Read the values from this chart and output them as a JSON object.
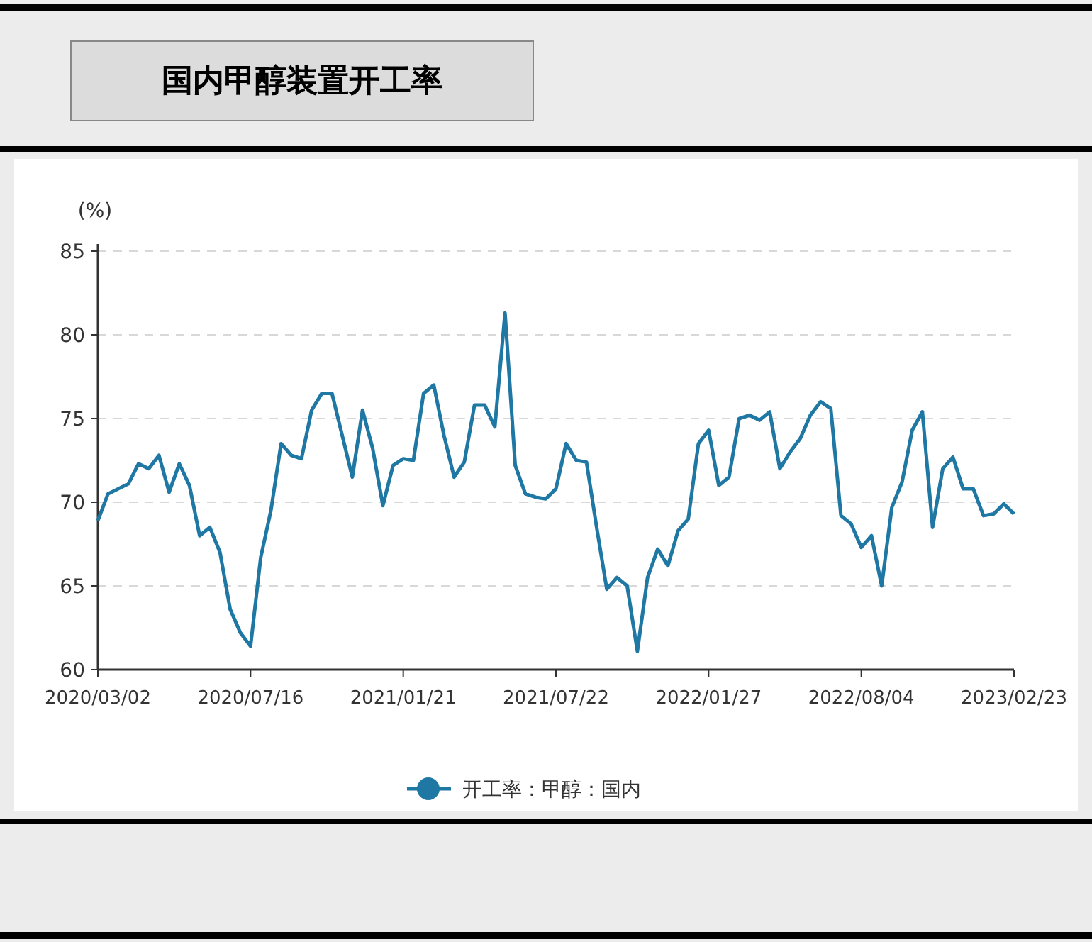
{
  "chart_data": {
    "type": "line",
    "title": "国内甲醇装置开工率",
    "ylabel": "(%)",
    "categories": [
      "2020/03/02",
      null,
      null,
      null,
      null,
      null,
      null,
      null,
      null,
      null,
      null,
      null,
      null,
      null,
      null,
      "2020/07/16",
      null,
      null,
      null,
      null,
      null,
      null,
      null,
      null,
      null,
      null,
      null,
      null,
      null,
      null,
      "2021/01/21",
      null,
      null,
      null,
      null,
      null,
      null,
      null,
      null,
      null,
      null,
      null,
      null,
      null,
      null,
      "2021/07/22",
      null,
      null,
      null,
      null,
      null,
      null,
      null,
      null,
      null,
      null,
      null,
      null,
      null,
      null,
      "2022/01/27",
      null,
      null,
      null,
      null,
      null,
      null,
      null,
      null,
      null,
      null,
      null,
      null,
      null,
      null,
      "2022/08/04",
      null,
      null,
      null,
      null,
      null,
      null,
      null,
      null,
      null,
      null,
      null,
      null,
      null,
      null,
      "2023/02/23"
    ],
    "series": [
      {
        "name": "开工率：甲醇：国内",
        "color": "#1f77a4",
        "values": [
          68.9,
          70.5,
          70.8,
          71.1,
          72.3,
          72.0,
          72.8,
          70.6,
          72.3,
          71.0,
          68.0,
          68.5,
          67.0,
          63.6,
          62.2,
          61.4,
          66.7,
          69.5,
          73.5,
          72.8,
          72.6,
          75.5,
          76.5,
          76.5,
          74.0,
          71.5,
          75.5,
          73.2,
          69.8,
          72.2,
          72.6,
          72.5,
          76.5,
          77.0,
          74.0,
          71.5,
          72.4,
          75.8,
          75.8,
          74.5,
          81.3,
          72.2,
          70.5,
          70.3,
          70.2,
          70.8,
          73.5,
          72.5,
          72.4,
          68.5,
          64.8,
          65.5,
          65.0,
          61.1,
          65.5,
          67.2,
          66.2,
          68.3,
          69.0,
          73.5,
          74.3,
          71.0,
          71.5,
          75.0,
          75.2,
          74.9,
          75.4,
          72.0,
          73.0,
          73.8,
          75.2,
          76.0,
          75.6,
          69.2,
          68.7,
          67.3,
          68.0,
          65.0,
          69.7,
          71.2,
          74.3,
          75.4,
          68.5,
          72.0,
          72.7,
          70.8,
          70.8,
          69.2,
          69.3,
          69.9,
          69.3
        ]
      }
    ],
    "ylim": [
      60,
      85
    ],
    "yticks": [
      60,
      65,
      70,
      75,
      80,
      85
    ],
    "grid": "y",
    "legend": "bottom",
    "line_style": "solid"
  }
}
